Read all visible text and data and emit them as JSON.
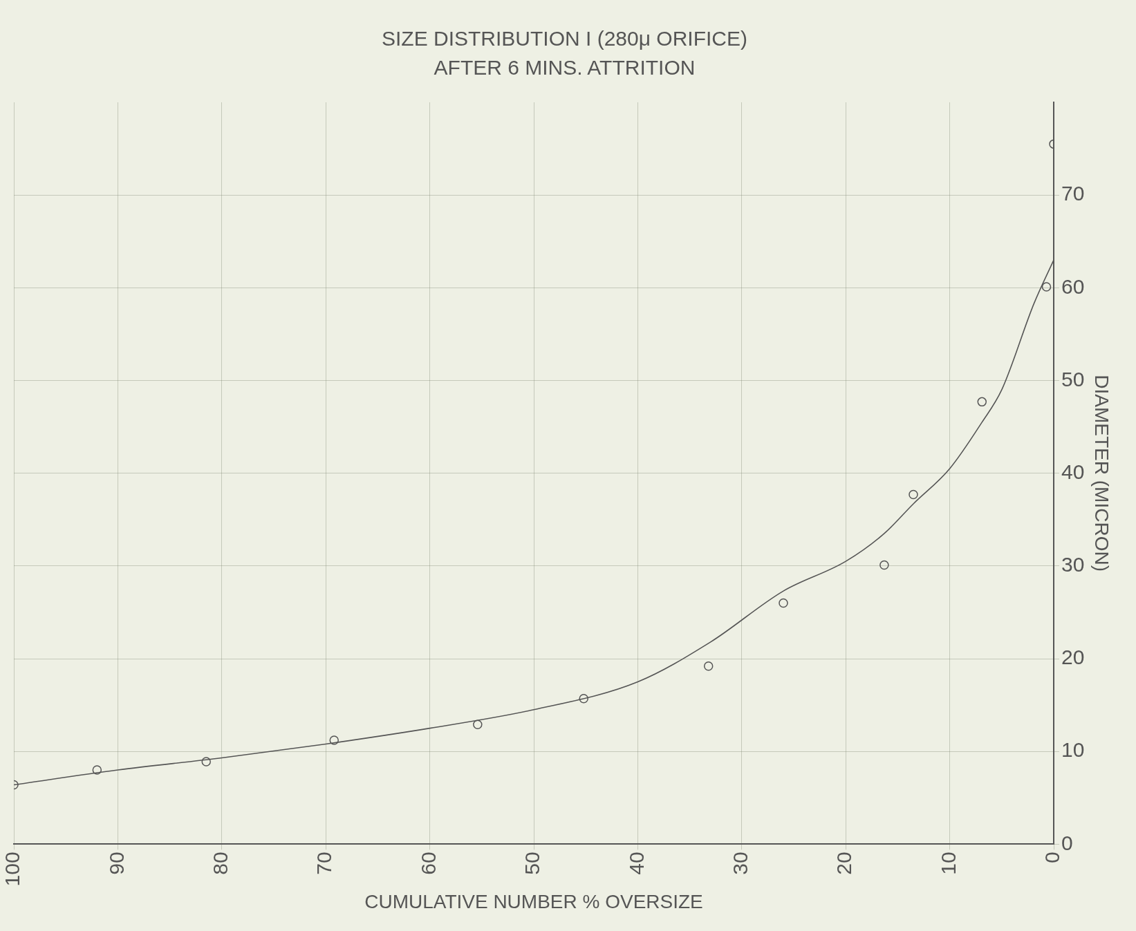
{
  "chart_data": {
    "type": "scatter",
    "title": "SIZE DISTRIBUTION I (280μ ORIFICE)",
    "subtitle": "AFTER 6 MINS. ATTRITION",
    "xlabel": "CUMULATIVE NUMBER % OVERSIZE",
    "ylabel": "DIAMETER (MICRON)",
    "xlim": [
      100,
      0
    ],
    "xticks": [
      100,
      90,
      80,
      70,
      60,
      50,
      40,
      30,
      20,
      10,
      0
    ],
    "ylim": [
      0,
      80
    ],
    "yticks": [
      0,
      10,
      20,
      30,
      40,
      50,
      60,
      70
    ],
    "grid": true,
    "legend": false,
    "series": [
      {
        "type": "scatter",
        "color": "#555555",
        "marker": "circle",
        "x": [
          100,
          92,
          81.5,
          69.2,
          55.4,
          45.2,
          33.2,
          26,
          16.3,
          13.5,
          6.9,
          0.7,
          0
        ],
        "values": [
          6.4,
          8,
          8.9,
          11.2,
          12.9,
          15.7,
          19.2,
          26,
          30.1,
          37.7,
          47.7,
          60.1,
          75.5
        ]
      },
      {
        "type": "line",
        "color": "#555555",
        "marker": "none",
        "line_style": "solid",
        "x": [
          100,
          90,
          80,
          70,
          60,
          50,
          40,
          33,
          26,
          20,
          16.3,
          13.5,
          10,
          6.9,
          5,
          1.9,
          0
        ],
        "values": [
          6.4,
          8,
          9.3,
          10.8,
          12.5,
          14.5,
          17.5,
          21.8,
          27.3,
          30.5,
          33.5,
          36.7,
          40.5,
          45.5,
          49,
          58.3,
          63
        ]
      }
    ]
  }
}
